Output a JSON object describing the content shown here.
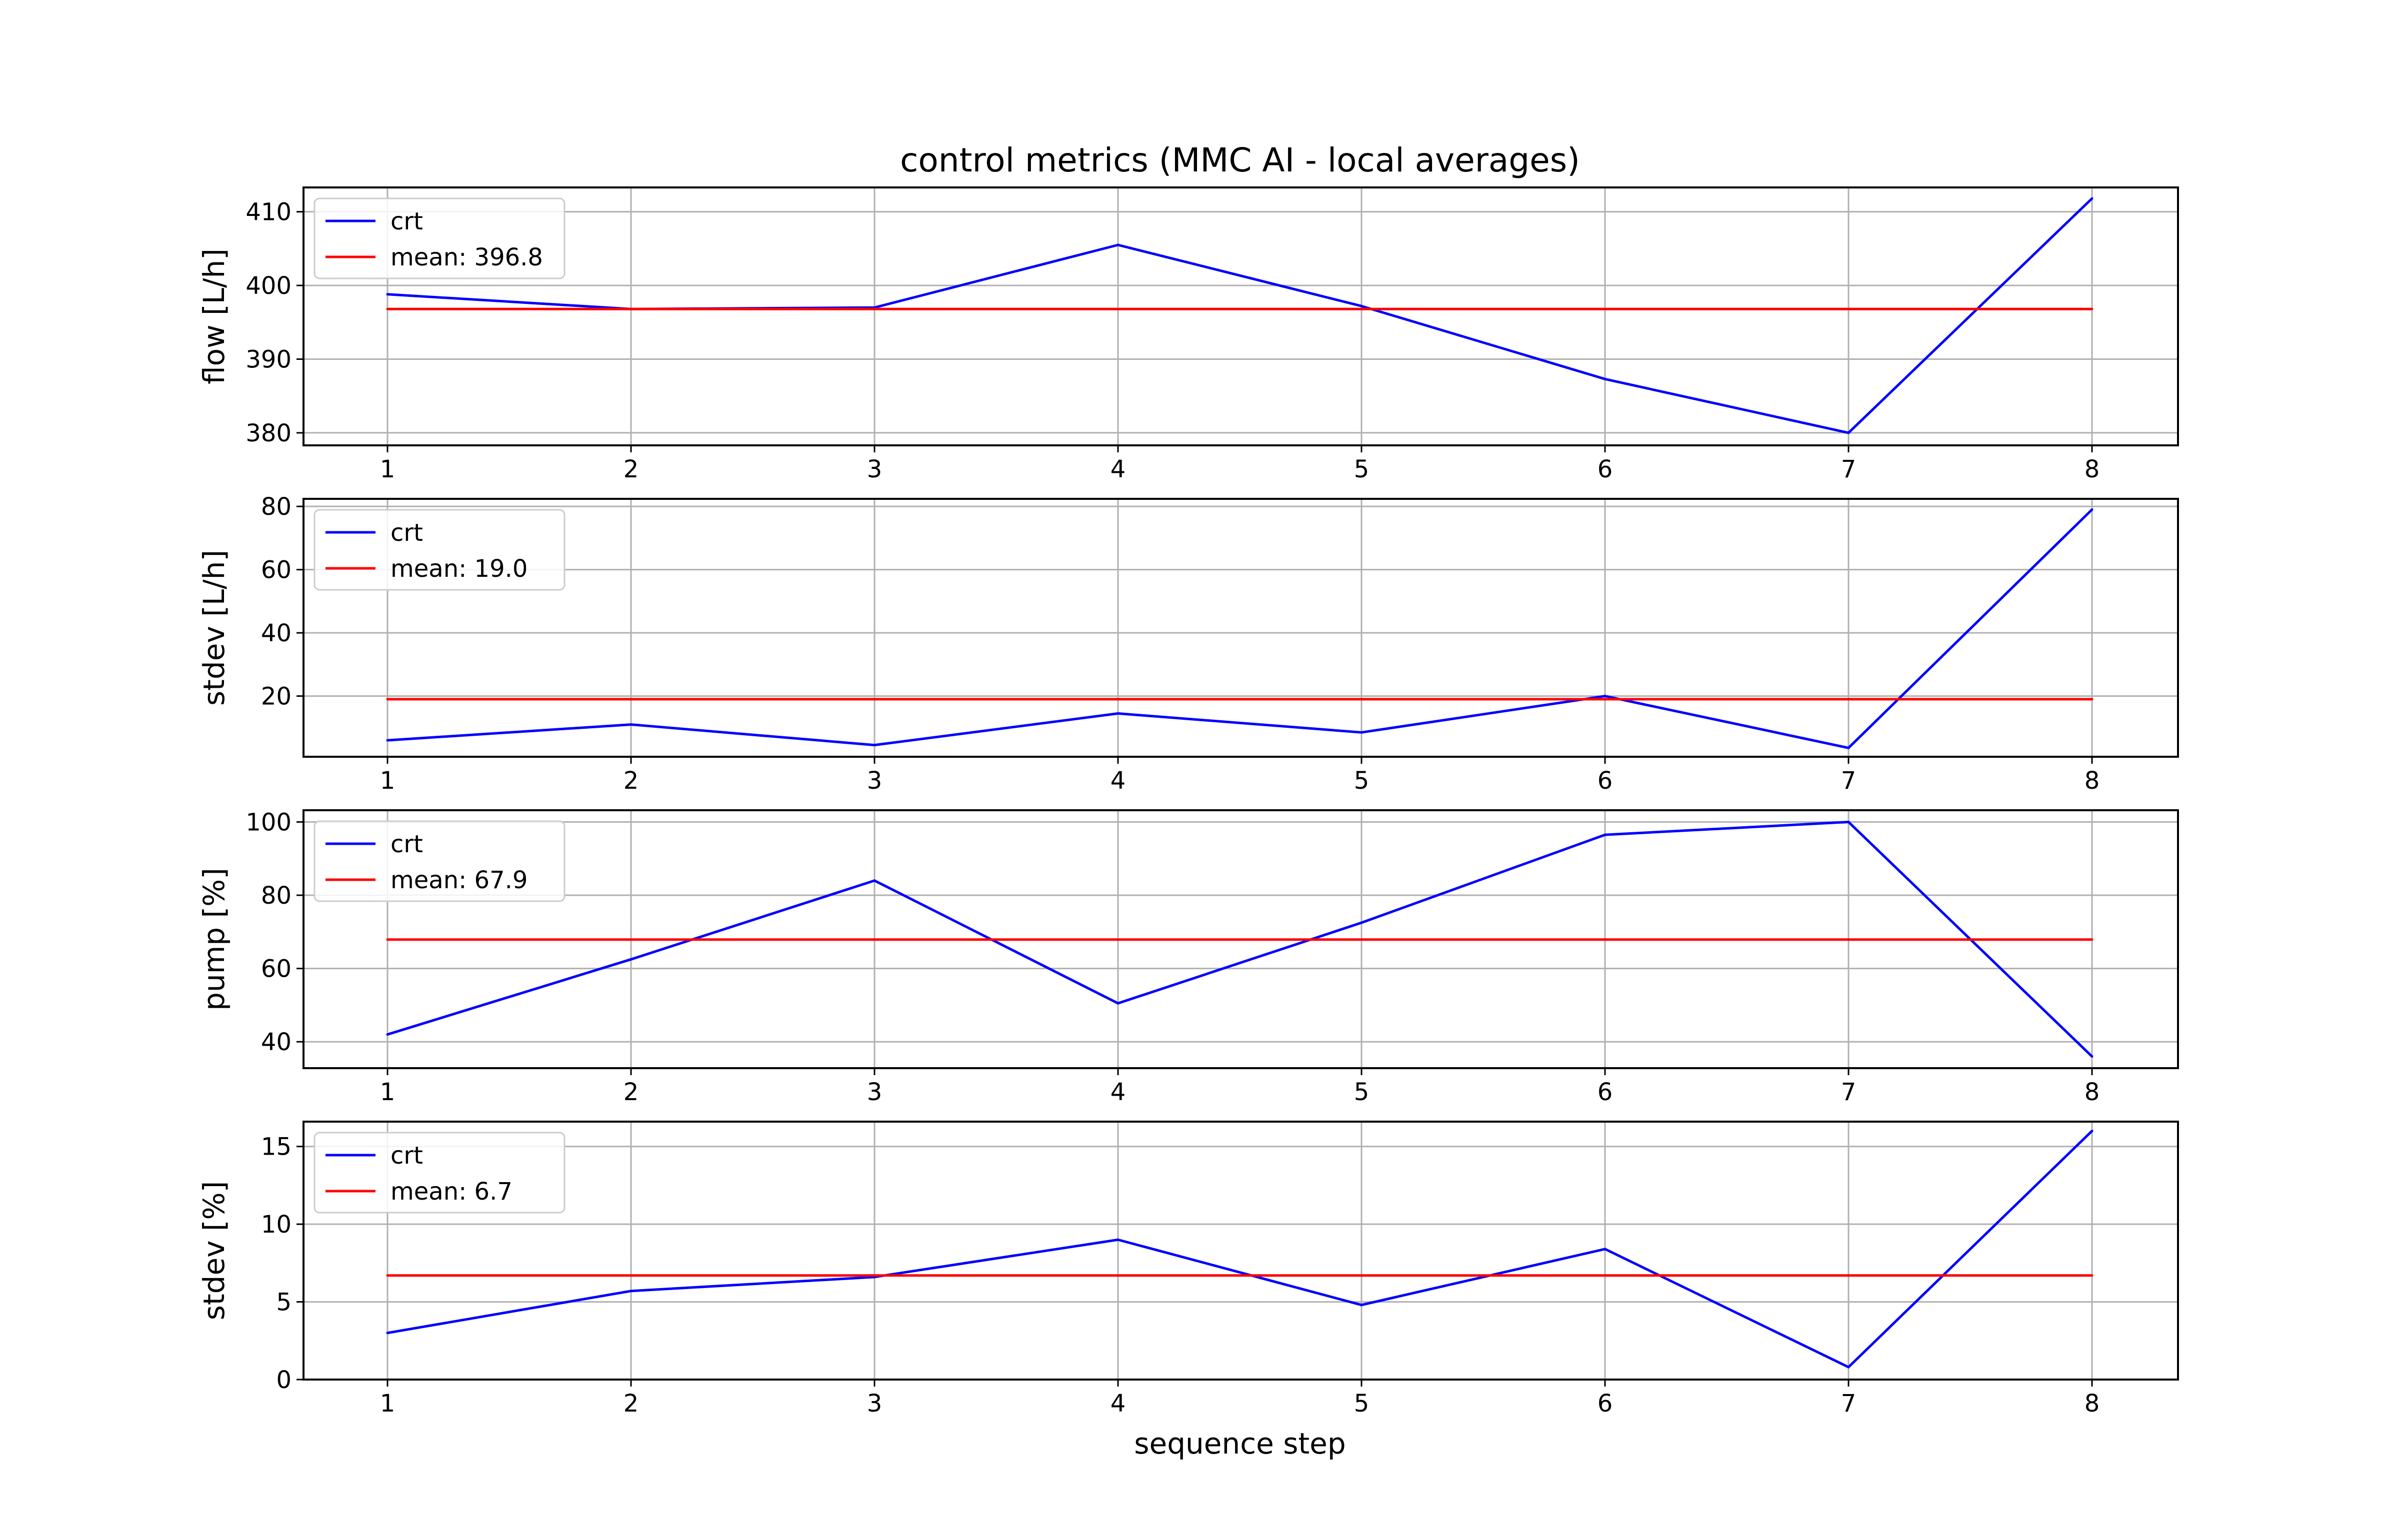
{
  "figure": {
    "title": "control metrics (MMC AI - local averages)",
    "xlabel": "sequence step"
  },
  "colors": {
    "series": "#0000ff",
    "mean": "#ff0000",
    "grid": "#b0b0b0",
    "axes": "#000000"
  },
  "chart_data": [
    {
      "type": "line",
      "title": "control metrics (MMC AI - local averages)",
      "xlabel": "",
      "ylabel": "flow [L/h]",
      "x": [
        1,
        2,
        3,
        4,
        5,
        6,
        7,
        8
      ],
      "xticks": [
        "1",
        "2",
        "3",
        "4",
        "5",
        "6",
        "7",
        "8"
      ],
      "yticks": [
        "380",
        "390",
        "400",
        "410"
      ],
      "ytick_values": [
        380,
        390,
        400,
        410
      ],
      "ylim": [
        378.3,
        413.3
      ],
      "grid": true,
      "legend": "upper left",
      "series": [
        {
          "name": "crt",
          "values": [
            398.8,
            396.8,
            397.0,
            405.5,
            397.2,
            387.3,
            380.0,
            411.8
          ]
        },
        {
          "name": "mean: 396.8",
          "values": [
            396.8,
            396.8,
            396.8,
            396.8,
            396.8,
            396.8,
            396.8,
            396.8
          ]
        }
      ]
    },
    {
      "type": "line",
      "xlabel": "",
      "ylabel": "stdev [L/h]",
      "x": [
        1,
        2,
        3,
        4,
        5,
        6,
        7,
        8
      ],
      "xticks": [
        "1",
        "2",
        "3",
        "4",
        "5",
        "6",
        "7",
        "8"
      ],
      "yticks": [
        "20",
        "40",
        "60",
        "80"
      ],
      "ytick_values": [
        20,
        40,
        60,
        80
      ],
      "ylim": [
        0.8,
        82.4
      ],
      "grid": true,
      "legend": "upper left",
      "series": [
        {
          "name": "crt",
          "values": [
            6.0,
            11.0,
            4.5,
            14.5,
            8.5,
            20.0,
            3.6,
            79.0
          ]
        },
        {
          "name": "mean: 19.0",
          "values": [
            19.0,
            19.0,
            19.0,
            19.0,
            19.0,
            19.0,
            19.0,
            19.0
          ]
        }
      ]
    },
    {
      "type": "line",
      "xlabel": "",
      "ylabel": "pump [%]",
      "x": [
        1,
        2,
        3,
        4,
        5,
        6,
        7,
        8
      ],
      "xticks": [
        "1",
        "2",
        "3",
        "4",
        "5",
        "6",
        "7",
        "8"
      ],
      "yticks": [
        "40",
        "60",
        "80",
        "100"
      ],
      "ytick_values": [
        40,
        60,
        80,
        100
      ],
      "ylim": [
        32.8,
        103.2
      ],
      "grid": true,
      "legend": "upper left",
      "series": [
        {
          "name": "crt",
          "values": [
            42.0,
            62.5,
            84.0,
            50.5,
            72.5,
            96.5,
            100.0,
            36.0
          ]
        },
        {
          "name": "mean: 67.9",
          "values": [
            67.9,
            67.9,
            67.9,
            67.9,
            67.9,
            67.9,
            67.9,
            67.9
          ]
        }
      ]
    },
    {
      "type": "line",
      "xlabel": "sequence step",
      "ylabel": "stdev [%]",
      "x": [
        1,
        2,
        3,
        4,
        5,
        6,
        7,
        8
      ],
      "xticks": [
        "1",
        "2",
        "3",
        "4",
        "5",
        "6",
        "7",
        "8"
      ],
      "yticks": [
        "0",
        "5",
        "10",
        "15"
      ],
      "ytick_values": [
        0,
        5,
        10,
        15
      ],
      "ylim": [
        0,
        16.6
      ],
      "grid": true,
      "legend": "upper left",
      "series": [
        {
          "name": "crt",
          "values": [
            3.0,
            5.7,
            6.6,
            9.0,
            4.8,
            8.4,
            0.8,
            16.0
          ]
        },
        {
          "name": "mean: 6.7",
          "values": [
            6.7,
            6.7,
            6.7,
            6.7,
            6.7,
            6.7,
            6.7,
            6.7
          ]
        }
      ]
    }
  ]
}
